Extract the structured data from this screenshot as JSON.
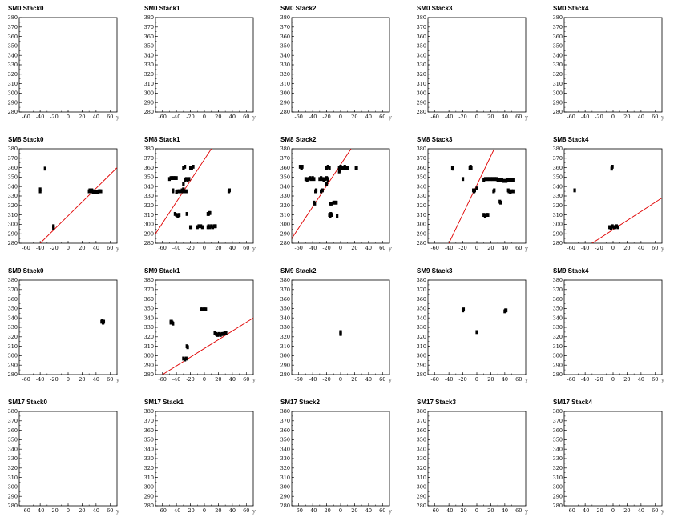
{
  "chart_data": {
    "type": "scatter",
    "layout_grid": {
      "rows": 4,
      "cols": 5
    },
    "x_axis_label": "y",
    "xlim": [
      -70,
      70
    ],
    "ylim": [
      280,
      380
    ],
    "x_ticks": [
      -60,
      -40,
      -20,
      0,
      20,
      40,
      60
    ],
    "y_ticks": [
      280,
      290,
      300,
      310,
      320,
      330,
      340,
      350,
      360,
      370,
      380
    ],
    "line_color": "#e00000",
    "point_color": "#000000",
    "panels": [
      {
        "title": "SM0 Stack0",
        "points": [],
        "fit": null
      },
      {
        "title": "SM0 Stack1",
        "points": [],
        "fit": null
      },
      {
        "title": "SM0 Stack2",
        "points": [],
        "fit": null
      },
      {
        "title": "SM0 Stack3",
        "points": [],
        "fit": null
      },
      {
        "title": "SM0 Stack4",
        "points": [],
        "fit": null
      },
      {
        "title": "SM8 Stack0",
        "points": [
          [
            -40,
            335
          ],
          [
            -40,
            337
          ],
          [
            -33,
            359
          ],
          [
            -21,
            296
          ],
          [
            -21,
            298
          ],
          [
            30,
            335
          ],
          [
            31,
            336
          ],
          [
            32,
            335
          ],
          [
            33,
            336
          ],
          [
            34,
            336
          ],
          [
            35,
            335
          ],
          [
            36,
            334
          ],
          [
            37,
            335
          ],
          [
            38,
            334
          ],
          [
            39,
            334
          ],
          [
            40,
            334
          ],
          [
            41,
            334
          ],
          [
            42,
            334
          ],
          [
            43,
            334
          ],
          [
            44,
            335
          ],
          [
            45,
            335
          ],
          [
            46,
            335
          ],
          [
            47,
            335
          ]
        ],
        "fit": [
          [
            -40,
            280
          ],
          [
            70,
            360
          ]
        ]
      },
      {
        "title": "SM8 Stack1",
        "points": [
          [
            -50,
            348
          ],
          [
            -48,
            349
          ],
          [
            -46,
            349
          ],
          [
            -44,
            349
          ],
          [
            -42,
            349
          ],
          [
            -40,
            349
          ],
          [
            -45,
            335
          ],
          [
            -45,
            336
          ],
          [
            -42,
            311
          ],
          [
            -40,
            310
          ],
          [
            -38,
            309
          ],
          [
            -36,
            310
          ],
          [
            -40,
            334
          ],
          [
            -38,
            335
          ],
          [
            -36,
            335
          ],
          [
            -34,
            335
          ],
          [
            -32,
            335
          ],
          [
            -30,
            335
          ],
          [
            -28,
            335
          ],
          [
            -26,
            335
          ],
          [
            -30,
            343
          ],
          [
            -28,
            347
          ],
          [
            -26,
            348
          ],
          [
            -24,
            347
          ],
          [
            -22,
            348
          ],
          [
            -30,
            360
          ],
          [
            -28,
            361
          ],
          [
            -20,
            360
          ],
          [
            -18,
            360
          ],
          [
            -16,
            361
          ],
          [
            -25,
            311
          ],
          [
            -20,
            297
          ],
          [
            -19,
            297
          ],
          [
            -10,
            297
          ],
          [
            -8,
            298
          ],
          [
            -5,
            298
          ],
          [
            -3,
            297
          ],
          [
            5,
            311
          ],
          [
            6,
            311
          ],
          [
            7,
            312
          ],
          [
            8,
            312
          ],
          [
            5,
            297
          ],
          [
            6,
            298
          ],
          [
            8,
            297
          ],
          [
            10,
            298
          ],
          [
            12,
            297
          ],
          [
            14,
            298
          ],
          [
            16,
            298
          ],
          [
            -32,
            336
          ],
          [
            -30,
            337
          ],
          [
            35,
            335
          ],
          [
            36,
            336
          ]
        ],
        "fit": [
          [
            -70,
            290
          ],
          [
            10,
            380
          ]
        ]
      },
      {
        "title": "SM8 Stack2",
        "points": [
          [
            -58,
            361
          ],
          [
            -56,
            360
          ],
          [
            -55,
            361
          ],
          [
            -50,
            348
          ],
          [
            -48,
            347
          ],
          [
            -46,
            348
          ],
          [
            -44,
            349
          ],
          [
            -42,
            348
          ],
          [
            -40,
            349
          ],
          [
            -38,
            348
          ],
          [
            -36,
            335
          ],
          [
            -35,
            336
          ],
          [
            -30,
            348
          ],
          [
            -28,
            349
          ],
          [
            -26,
            348
          ],
          [
            -24,
            347
          ],
          [
            -22,
            348
          ],
          [
            -20,
            349
          ],
          [
            -18,
            348
          ],
          [
            -28,
            335
          ],
          [
            -26,
            336
          ],
          [
            -20,
            360
          ],
          [
            -18,
            361
          ],
          [
            -16,
            360
          ],
          [
            -38,
            323
          ],
          [
            -37,
            322
          ],
          [
            -15,
            322
          ],
          [
            -13,
            322
          ],
          [
            -10,
            323
          ],
          [
            -8,
            323
          ],
          [
            -6,
            323
          ],
          [
            -16,
            310
          ],
          [
            -15,
            309
          ],
          [
            -14,
            311
          ],
          [
            -13,
            310
          ],
          [
            -5,
            309
          ],
          [
            -20,
            343
          ],
          [
            -18,
            347
          ],
          [
            -2,
            360
          ],
          [
            0,
            361
          ],
          [
            2,
            360
          ],
          [
            4,
            360
          ],
          [
            6,
            361
          ],
          [
            8,
            360
          ],
          [
            10,
            360
          ],
          [
            -2,
            356
          ],
          [
            -1,
            357
          ],
          [
            22,
            360
          ],
          [
            23,
            360
          ]
        ],
        "fit": [
          [
            -70,
            285
          ],
          [
            15,
            380
          ]
        ]
      },
      {
        "title": "SM8 Stack3",
        "points": [
          [
            -35,
            360
          ],
          [
            -34,
            359
          ],
          [
            -20,
            348
          ],
          [
            -10,
            360
          ],
          [
            -9,
            361
          ],
          [
            -8,
            360
          ],
          [
            -5,
            336
          ],
          [
            -4,
            335
          ],
          [
            -3,
            336
          ],
          [
            10,
            310
          ],
          [
            12,
            309
          ],
          [
            14,
            310
          ],
          [
            16,
            310
          ],
          [
            10,
            347
          ],
          [
            12,
            348
          ],
          [
            14,
            348
          ],
          [
            16,
            348
          ],
          [
            18,
            348
          ],
          [
            20,
            348
          ],
          [
            22,
            348
          ],
          [
            24,
            348
          ],
          [
            26,
            348
          ],
          [
            28,
            348
          ],
          [
            30,
            347
          ],
          [
            32,
            347
          ],
          [
            34,
            347
          ],
          [
            36,
            347
          ],
          [
            38,
            346
          ],
          [
            40,
            346
          ],
          [
            42,
            346
          ],
          [
            44,
            347
          ],
          [
            46,
            347
          ],
          [
            48,
            347
          ],
          [
            50,
            347
          ],
          [
            52,
            347
          ],
          [
            24,
            335
          ],
          [
            25,
            336
          ],
          [
            33,
            324
          ],
          [
            34,
            323
          ],
          [
            45,
            336
          ],
          [
            46,
            335
          ],
          [
            48,
            334
          ],
          [
            50,
            335
          ],
          [
            52,
            335
          ],
          [
            0,
            338
          ]
        ],
        "fit": [
          [
            -40,
            280
          ],
          [
            25,
            380
          ]
        ]
      },
      {
        "title": "SM8 Stack4",
        "points": [
          [
            -55,
            336
          ],
          [
            -5,
            297
          ],
          [
            -3,
            297
          ],
          [
            -1,
            298
          ],
          [
            1,
            297
          ],
          [
            3,
            297
          ],
          [
            5,
            298
          ],
          [
            7,
            297
          ],
          [
            -2,
            359
          ],
          [
            -1,
            361
          ],
          [
            -3,
            296
          ]
        ],
        "fit": [
          [
            -30,
            280
          ],
          [
            70,
            328
          ]
        ]
      },
      {
        "title": "SM9 Stack0",
        "points": [
          [
            48,
            336
          ],
          [
            49,
            337
          ],
          [
            50,
            335
          ],
          [
            51,
            336
          ]
        ],
        "fit": null
      },
      {
        "title": "SM9 Stack1",
        "points": [
          [
            -48,
            335
          ],
          [
            -47,
            336
          ],
          [
            -46,
            335
          ],
          [
            -45,
            334
          ],
          [
            -48,
            336
          ],
          [
            -30,
            297
          ],
          [
            -28,
            296
          ],
          [
            -26,
            297
          ],
          [
            -25,
            310
          ],
          [
            -24,
            309
          ],
          [
            -5,
            349
          ],
          [
            -3,
            349
          ],
          [
            0,
            349
          ],
          [
            2,
            349
          ],
          [
            15,
            324
          ],
          [
            17,
            323
          ],
          [
            19,
            322
          ],
          [
            21,
            323
          ],
          [
            23,
            322
          ],
          [
            25,
            323
          ],
          [
            27,
            323
          ],
          [
            29,
            324
          ],
          [
            31,
            324
          ]
        ],
        "fit": [
          [
            -60,
            280
          ],
          [
            70,
            340
          ]
        ]
      },
      {
        "title": "SM9 Stack2",
        "points": [
          [
            0,
            324
          ],
          [
            0,
            325
          ],
          [
            0,
            323
          ]
        ],
        "fit": null
      },
      {
        "title": "SM9 Stack3",
        "points": [
          [
            -20,
            348
          ],
          [
            -19,
            349
          ],
          [
            0,
            325
          ],
          [
            40,
            347
          ],
          [
            41,
            348
          ],
          [
            42,
            348
          ]
        ],
        "fit": null
      },
      {
        "title": "SM9 Stack4",
        "points": [],
        "fit": null
      },
      {
        "title": "SM17 Stack0",
        "points": [],
        "fit": null
      },
      {
        "title": "SM17 Stack1",
        "points": [],
        "fit": null
      },
      {
        "title": "SM17 Stack2",
        "points": [],
        "fit": null
      },
      {
        "title": "SM17 Stack3",
        "points": [],
        "fit": null
      },
      {
        "title": "SM17 Stack4",
        "points": [],
        "fit": null
      }
    ]
  }
}
